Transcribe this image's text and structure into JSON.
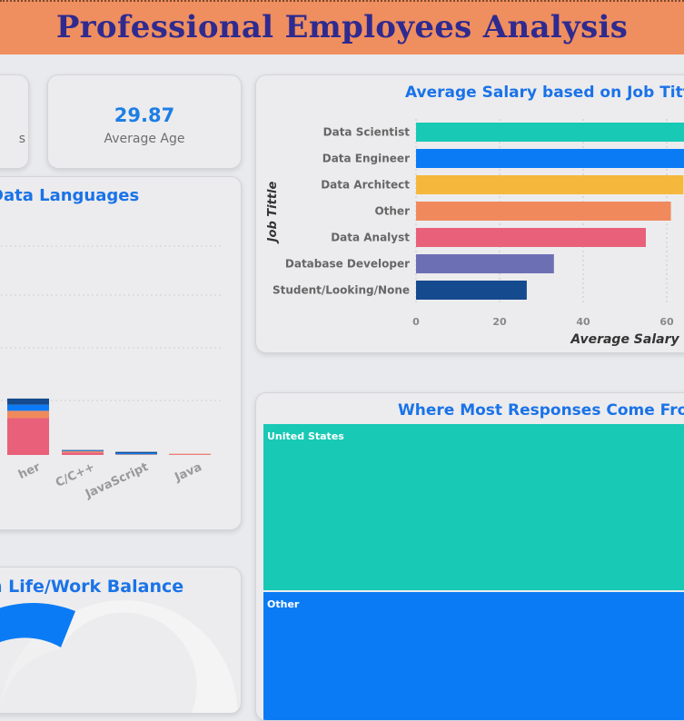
{
  "header": {
    "title": "Professional Employees Analysis"
  },
  "kpis": [
    {
      "value": "",
      "label": "s"
    },
    {
      "value": "29.87",
      "label": "Average Age"
    }
  ],
  "languages_card": {
    "title": "Data Languages",
    "categories": [
      "her",
      "C/C++",
      "JavaScript",
      "Java"
    ]
  },
  "salary_card": {
    "title": "Average Salary based on Job Tittle"
  },
  "responses_card": {
    "title": "Where Most Responses Come From"
  },
  "balance_card": {
    "title": "n Life/Work Balance"
  },
  "colors": {
    "teal": "#18c9b5",
    "blue": "#0b7bf5",
    "yellow": "#f5b83d",
    "orange": "#f08a5d",
    "pink": "#e9607a",
    "purple": "#6d6fb5",
    "navy": "#154a8e"
  },
  "chart_data": [
    {
      "type": "bar",
      "orientation": "horizontal",
      "title": "Average Salary based on Job Tittle",
      "xlabel": "Average Salary",
      "ylabel": "Job Tittle",
      "categories": [
        "Data Scientist",
        "Data Engineer",
        "Data Architect",
        "Other",
        "Data Analyst",
        "Database Developer",
        "Student/Looking/None"
      ],
      "values": [
        65,
        65,
        64,
        61,
        55,
        33,
        26.5
      ],
      "bar_colors": [
        "#18c9b5",
        "#0b7bf5",
        "#f5b83d",
        "#f08a5d",
        "#e9607a",
        "#6d6fb5",
        "#154a8e"
      ],
      "x_ticks": [
        "0",
        "20",
        "40",
        "60"
      ],
      "xlim": [
        0,
        65
      ]
    },
    {
      "type": "bar",
      "stacked": true,
      "title": "Data Languages",
      "categories": [
        "her",
        "C/C++",
        "JavaScript",
        "Java"
      ],
      "series": [
        {
          "color": "#e9607a",
          "values": [
            30,
            2,
            0,
            0.5
          ]
        },
        {
          "color": "#f08a5d",
          "values": [
            6,
            1,
            0.5,
            0.5
          ]
        },
        {
          "color": "#0b7bf5",
          "values": [
            5,
            0.5,
            1,
            0
          ]
        },
        {
          "color": "#154a8e",
          "values": [
            5,
            0.5,
            1,
            0
          ]
        }
      ],
      "ylim": [
        0,
        136
      ],
      "grid": true
    },
    {
      "type": "treemap",
      "title": "Where Most Responses Come From",
      "categories": [
        "United States",
        "Other"
      ],
      "colors": [
        "#18c9b5",
        "#0b7bf5"
      ]
    },
    {
      "type": "pie",
      "title": "n Life/Work Balance",
      "colors": [
        "#0b7bf5",
        "#f4f4f4"
      ]
    }
  ]
}
